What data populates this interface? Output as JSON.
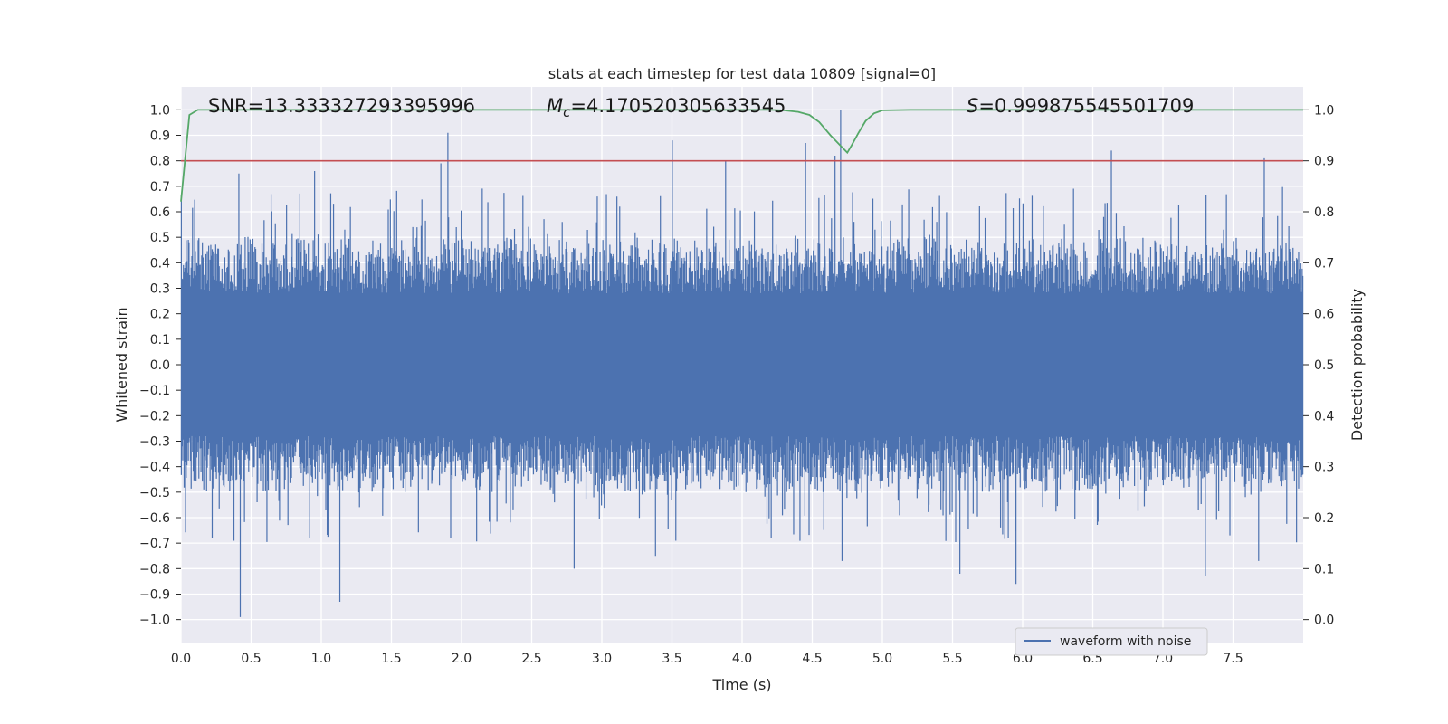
{
  "chart_data": {
    "type": "line",
    "title": "stats at each timestep for test data 10809 [signal=0]",
    "xlabel": "Time (s)",
    "ylabel": "Whitened strain",
    "y2label": "Detection probability",
    "xlim": [
      0.0,
      8.0
    ],
    "ylim": [
      -1.09,
      1.09
    ],
    "y2lim": [
      -0.045,
      1.045
    ],
    "xticks": [
      0.0,
      0.5,
      1.0,
      1.5,
      2.0,
      2.5,
      3.0,
      3.5,
      4.0,
      4.5,
      5.0,
      5.5,
      6.0,
      6.5,
      7.0,
      7.5
    ],
    "yticks": [
      -1.0,
      -0.9,
      -0.8,
      -0.7,
      -0.6,
      -0.5,
      -0.4,
      -0.3,
      -0.2,
      -0.1,
      0.0,
      0.1,
      0.2,
      0.3,
      0.4,
      0.5,
      0.6,
      0.7,
      0.8,
      0.9,
      1.0
    ],
    "y2ticks": [
      0.0,
      0.1,
      0.2,
      0.3,
      0.4,
      0.5,
      0.6,
      0.7,
      0.8,
      0.9,
      1.0
    ],
    "grid": true,
    "legend_position": "bottom-right",
    "legend_entries": [
      "waveform with noise"
    ],
    "annotations": {
      "snr": "SNR=13.333327293395996",
      "mc_sym": "M",
      "mc_sub": "c",
      "mc_value": "=4.170520305633545",
      "s_sym": "S",
      "s_value": "=0.999875545501709"
    },
    "threshold": {
      "axis": "right",
      "value": 0.9,
      "color": "#c44e52"
    },
    "waveform": {
      "name": "waveform with noise",
      "color": "#4c72b0",
      "duration": 8.0,
      "sample_count": 1600,
      "typical_envelope": [
        -0.45,
        0.45
      ],
      "peaks": [
        {
          "t": 0.41,
          "v": 0.75
        },
        {
          "t": 0.42,
          "v": -0.99
        },
        {
          "t": 0.95,
          "v": 0.76
        },
        {
          "t": 1.13,
          "v": -0.93
        },
        {
          "t": 1.85,
          "v": 0.79
        },
        {
          "t": 1.9,
          "v": 0.91
        },
        {
          "t": 2.8,
          "v": -0.8
        },
        {
          "t": 3.5,
          "v": 0.88
        },
        {
          "t": 3.38,
          "v": -0.75
        },
        {
          "t": 3.88,
          "v": 0.8
        },
        {
          "t": 4.45,
          "v": 0.87
        },
        {
          "t": 4.66,
          "v": 0.82
        },
        {
          "t": 4.7,
          "v": 1.0
        },
        {
          "t": 4.71,
          "v": -0.77
        },
        {
          "t": 5.55,
          "v": -0.82
        },
        {
          "t": 5.95,
          "v": -0.86
        },
        {
          "t": 6.63,
          "v": 0.84
        },
        {
          "t": 7.3,
          "v": -0.83
        },
        {
          "t": 7.72,
          "v": 0.81
        },
        {
          "t": 7.68,
          "v": -0.77
        }
      ]
    },
    "probability": {
      "name": "detection probability",
      "color": "#55a868",
      "x": [
        0.0,
        0.06,
        0.12,
        0.3,
        1.0,
        2.0,
        3.0,
        4.0,
        4.2,
        4.3,
        4.4,
        4.48,
        4.55,
        4.63,
        4.7,
        4.75,
        4.78,
        4.83,
        4.88,
        4.94,
        5.0,
        5.2,
        6.0,
        7.0,
        8.0
      ],
      "y": [
        0.82,
        0.99,
        1.0,
        1.0,
        1.0,
        1.0,
        1.0,
        1.0,
        1.0,
        0.999,
        0.996,
        0.99,
        0.976,
        0.95,
        0.93,
        0.916,
        0.93,
        0.955,
        0.978,
        0.993,
        0.999,
        1.0,
        1.0,
        1.0,
        1.0
      ]
    }
  }
}
